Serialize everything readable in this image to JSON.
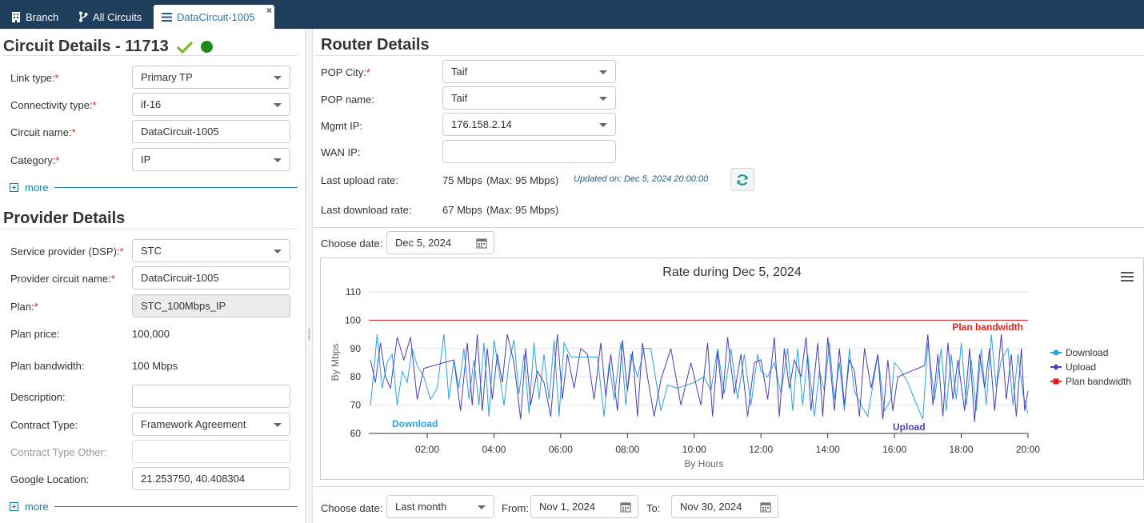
{
  "tabs": [
    {
      "label": "Branch",
      "icon": "building-icon"
    },
    {
      "label": "All Circuits",
      "icon": "branch-icon"
    },
    {
      "label": "DataCircuit-1005",
      "icon": "list-icon",
      "close": "×"
    }
  ],
  "circuit": {
    "title": "Circuit Details - 11713",
    "status_colors": {
      "check": "#7cb82f",
      "dot": "#1e8a1e"
    },
    "fields": {
      "link_type": {
        "label": "Link type:",
        "value": "Primary TP"
      },
      "connectivity_type": {
        "label": "Connectivity type:",
        "value": "if-16"
      },
      "circuit_name": {
        "label": "Circuit name:",
        "value": "DataCircuit-1005"
      },
      "category": {
        "label": "Category:",
        "value": "IP"
      }
    },
    "more": "more"
  },
  "provider": {
    "title": "Provider Details",
    "fields": {
      "service_provider": {
        "label": "Service provider (DSP):",
        "value": "STC"
      },
      "provider_circuit_name": {
        "label": "Provider circuit name:",
        "value": "DataCircuit-1005"
      },
      "plan": {
        "label": "Plan:",
        "value": "STC_100Mbps_IP"
      },
      "plan_price": {
        "label": "Plan price:",
        "value": "100,000"
      },
      "plan_bandwidth": {
        "label": "Plan bandwidth:",
        "value": "100 Mbps"
      },
      "description": {
        "label": "Description:",
        "value": ""
      },
      "contract_type": {
        "label": "Contract Type:",
        "value": "Framework Agreement"
      },
      "contract_type_other": {
        "label": "Contract Type Other:",
        "value": ""
      },
      "google_location": {
        "label": "Google Location:",
        "value": "21.253750, 40.408304"
      }
    },
    "more": "more"
  },
  "router": {
    "title": "Router Details",
    "pop_city": {
      "label": "POP City:",
      "value": "Taif"
    },
    "pop_name": {
      "label": "POP name:",
      "value": "Taif"
    },
    "mgmt_ip": {
      "label": "Mgmt IP:",
      "value": "176.158.2.14"
    },
    "wan_ip": {
      "label": "WAN IP:",
      "value": ""
    },
    "last_upload": {
      "label": "Last upload rate:",
      "value": "75 Mbps",
      "max": "(Max: 95 Mbps)"
    },
    "updated_on": "Updated on: Dec 5, 2024 20:00:00",
    "last_download": {
      "label": "Last download rate:",
      "value": "67 Mbps",
      "max": "(Max: 95 Mbps)"
    }
  },
  "date_filter": {
    "label": "Choose date:",
    "value": "Dec 5, 2024"
  },
  "range_filter": {
    "label": "Choose date:",
    "preset": "Last month",
    "from_label": "From:",
    "from": "Nov 1, 2024",
    "to_label": "To:",
    "to": "Nov 30, 2024"
  },
  "chart_data": {
    "type": "line",
    "title": "Rate during Dec 5, 2024",
    "xlabel": "By Hours",
    "ylabel": "By Mbps",
    "ylim": [
      60,
      110
    ],
    "yticks": [
      60,
      70,
      80,
      90,
      100,
      110
    ],
    "xlim": [
      0.25,
      20.0
    ],
    "xticks": [
      {
        "v": 2,
        "label": "02:00"
      },
      {
        "v": 4,
        "label": "04:00"
      },
      {
        "v": 6,
        "label": "06:00"
      },
      {
        "v": 8,
        "label": "08:00"
      },
      {
        "v": 10,
        "label": "10:00"
      },
      {
        "v": 12,
        "label": "12:00"
      },
      {
        "v": 14,
        "label": "14:00"
      },
      {
        "v": 16,
        "label": "16:00"
      },
      {
        "v": 18,
        "label": "18:00"
      },
      {
        "v": 20,
        "label": "20:00"
      }
    ],
    "legend_position": "right",
    "series": [
      {
        "name": "Download",
        "color": "#2ca3e0",
        "annotation": "Download",
        "values": [
          [
            0.3,
            70
          ],
          [
            0.4,
            82
          ],
          [
            0.5,
            95
          ],
          [
            0.65,
            76
          ],
          [
            0.8,
            85
          ],
          [
            0.95,
            88
          ],
          [
            1.1,
            70
          ],
          [
            1.25,
            82
          ],
          [
            1.4,
            78
          ],
          [
            1.55,
            90
          ],
          [
            1.7,
            84
          ],
          [
            1.9,
            80
          ],
          [
            2.1,
            72
          ],
          [
            2.3,
            76
          ],
          [
            2.5,
            95
          ],
          [
            2.65,
            72
          ],
          [
            2.8,
            86
          ],
          [
            2.95,
            76
          ],
          [
            3.1,
            90
          ],
          [
            3.25,
            72
          ],
          [
            3.4,
            86
          ],
          [
            3.55,
            70
          ],
          [
            3.7,
            92
          ],
          [
            3.85,
            66
          ],
          [
            4.0,
            93
          ],
          [
            4.15,
            82
          ],
          [
            4.3,
            70
          ],
          [
            4.45,
            85
          ],
          [
            4.6,
            93
          ],
          [
            4.75,
            74
          ],
          [
            4.9,
            88
          ],
          [
            5.05,
            67
          ],
          [
            5.2,
            92
          ],
          [
            5.35,
            72
          ],
          [
            5.5,
            88
          ],
          [
            5.65,
            72
          ],
          [
            5.8,
            93
          ],
          [
            5.95,
            66
          ],
          [
            6.1,
            92
          ],
          [
            6.3,
            87
          ],
          [
            7.1,
            87
          ],
          [
            7.3,
            66
          ],
          [
            7.45,
            85
          ],
          [
            7.6,
            72
          ],
          [
            7.8,
            92
          ],
          [
            7.95,
            70
          ],
          [
            8.1,
            88
          ],
          [
            8.3,
            80
          ],
          [
            8.5,
            90
          ],
          [
            8.7,
            90
          ],
          [
            9.0,
            68
          ],
          [
            9.2,
            77
          ],
          [
            9.5,
            76
          ],
          [
            10.0,
            78
          ],
          [
            10.3,
            80
          ],
          [
            10.5,
            75
          ],
          [
            10.7,
            90
          ],
          [
            10.9,
            74
          ],
          [
            11.1,
            90
          ],
          [
            11.3,
            72
          ],
          [
            11.5,
            88
          ],
          [
            11.7,
            70
          ],
          [
            11.9,
            88
          ],
          [
            12.0,
            82
          ],
          [
            12.2,
            80
          ],
          [
            12.4,
            85
          ],
          [
            12.6,
            74
          ],
          [
            12.8,
            90
          ],
          [
            12.95,
            68
          ],
          [
            13.1,
            90
          ],
          [
            13.25,
            70
          ],
          [
            13.4,
            88
          ],
          [
            13.6,
            66
          ],
          [
            13.75,
            82
          ],
          [
            13.9,
            75
          ],
          [
            14.05,
            92
          ],
          [
            14.2,
            72
          ],
          [
            14.35,
            85
          ],
          [
            14.5,
            68
          ],
          [
            14.65,
            90
          ],
          [
            14.8,
            75
          ],
          [
            15.0,
            70
          ],
          [
            15.2,
            66
          ],
          [
            15.5,
            88
          ],
          [
            15.7,
            68
          ],
          [
            15.9,
            72
          ],
          [
            16.0,
            85
          ],
          [
            16.2,
            82
          ],
          [
            16.4,
            78
          ],
          [
            16.6,
            72
          ],
          [
            16.85,
            65
          ],
          [
            17.0,
            92
          ],
          [
            17.2,
            72
          ],
          [
            17.4,
            90
          ],
          [
            17.55,
            68
          ],
          [
            17.7,
            88
          ],
          [
            17.85,
            72
          ],
          [
            18.0,
            92
          ],
          [
            18.15,
            70
          ],
          [
            18.3,
            86
          ],
          [
            18.45,
            68
          ],
          [
            18.6,
            90
          ],
          [
            18.75,
            70
          ],
          [
            18.9,
            95
          ],
          [
            19.05,
            76
          ],
          [
            19.2,
            86
          ],
          [
            19.4,
            90
          ],
          [
            19.55,
            70
          ],
          [
            19.7,
            88
          ],
          [
            19.85,
            74
          ],
          [
            20.0,
            67
          ]
        ]
      },
      {
        "name": "Upload",
        "color": "#4a3fb5",
        "annotation": "Upload",
        "values": [
          [
            0.3,
            86
          ],
          [
            0.45,
            78
          ],
          [
            0.6,
            92
          ],
          [
            0.75,
            80
          ],
          [
            0.9,
            76
          ],
          [
            1.1,
            94
          ],
          [
            1.3,
            86
          ],
          [
            1.5,
            94
          ],
          [
            1.7,
            72
          ],
          [
            1.9,
            83
          ],
          [
            2.8,
            86
          ],
          [
            3.0,
            68
          ],
          [
            3.2,
            92
          ],
          [
            3.35,
            70
          ],
          [
            3.5,
            95
          ],
          [
            3.65,
            68
          ],
          [
            3.8,
            90
          ],
          [
            3.95,
            72
          ],
          [
            4.1,
            88
          ],
          [
            4.25,
            78
          ],
          [
            4.4,
            95
          ],
          [
            4.6,
            85
          ],
          [
            4.8,
            65
          ],
          [
            4.95,
            90
          ],
          [
            5.1,
            70
          ],
          [
            5.3,
            82
          ],
          [
            5.5,
            78
          ],
          [
            5.7,
            66
          ],
          [
            5.9,
            95
          ],
          [
            6.05,
            72
          ],
          [
            6.2,
            88
          ],
          [
            6.4,
            76
          ],
          [
            6.6,
            90
          ],
          [
            6.8,
            88
          ],
          [
            7.0,
            72
          ],
          [
            7.2,
            92
          ],
          [
            7.35,
            73
          ],
          [
            7.5,
            88
          ],
          [
            7.7,
            68
          ],
          [
            7.85,
            93
          ],
          [
            8.0,
            75
          ],
          [
            8.15,
            89
          ],
          [
            8.3,
            66
          ],
          [
            8.45,
            92
          ],
          [
            8.6,
            80
          ],
          [
            8.8,
            66
          ],
          [
            9.0,
            79
          ],
          [
            9.3,
            90
          ],
          [
            9.6,
            70
          ],
          [
            9.9,
            85
          ],
          [
            10.2,
            70
          ],
          [
            10.4,
            92
          ],
          [
            10.55,
            66
          ],
          [
            10.7,
            89
          ],
          [
            10.85,
            72
          ],
          [
            11.0,
            94
          ],
          [
            11.2,
            74
          ],
          [
            11.4,
            88
          ],
          [
            11.6,
            66
          ],
          [
            11.8,
            85
          ],
          [
            12.0,
            86
          ],
          [
            12.2,
            72
          ],
          [
            12.4,
            94
          ],
          [
            12.55,
            66
          ],
          [
            12.7,
            90
          ],
          [
            12.85,
            76
          ],
          [
            13.0,
            86
          ],
          [
            13.2,
            80
          ],
          [
            13.35,
            94
          ],
          [
            13.5,
            68
          ],
          [
            13.7,
            92
          ],
          [
            13.85,
            66
          ],
          [
            14.0,
            94
          ],
          [
            14.2,
            68
          ],
          [
            14.35,
            90
          ],
          [
            14.5,
            70
          ],
          [
            14.65,
            86
          ],
          [
            14.8,
            82
          ],
          [
            14.95,
            66
          ],
          [
            15.1,
            90
          ],
          [
            15.3,
            76
          ],
          [
            15.5,
            88
          ],
          [
            15.65,
            65
          ],
          [
            15.8,
            86
          ],
          [
            15.95,
            68
          ],
          [
            16.1,
            80
          ],
          [
            16.9,
            84
          ],
          [
            17.0,
            95
          ],
          [
            17.15,
            70
          ],
          [
            17.3,
            88
          ],
          [
            17.45,
            66
          ],
          [
            17.6,
            92
          ],
          [
            17.75,
            72
          ],
          [
            17.9,
            86
          ],
          [
            18.1,
            68
          ],
          [
            18.25,
            90
          ],
          [
            18.4,
            64
          ],
          [
            18.55,
            88
          ],
          [
            18.7,
            76
          ],
          [
            18.85,
            90
          ],
          [
            19.0,
            68
          ],
          [
            19.2,
            95
          ],
          [
            19.35,
            72
          ],
          [
            19.5,
            88
          ],
          [
            19.65,
            66
          ],
          [
            19.8,
            90
          ],
          [
            19.9,
            68
          ],
          [
            20.0,
            75
          ]
        ]
      },
      {
        "name": "Plan bandwidth",
        "color": "#e0201a",
        "annotation": "Plan bandwidth",
        "values": [
          [
            0.25,
            100
          ],
          [
            20.0,
            100
          ]
        ]
      }
    ]
  }
}
